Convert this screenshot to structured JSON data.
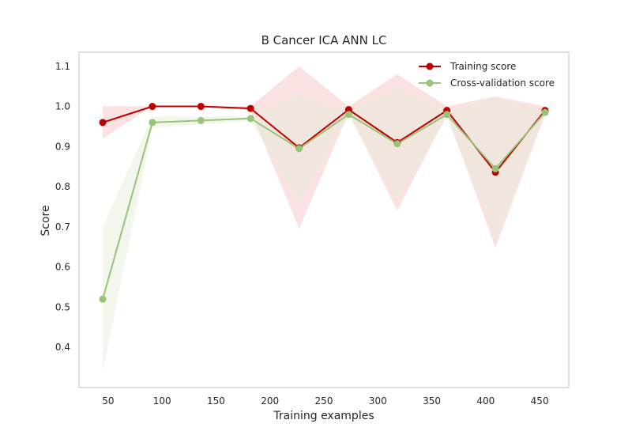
{
  "chart_data": {
    "type": "line",
    "title": "B Cancer ICA ANN LC",
    "xlabel": "Training examples",
    "ylabel": "Score",
    "xlim": [
      23,
      477
    ],
    "ylim": [
      0.3,
      1.135
    ],
    "xticks": [
      50,
      100,
      150,
      200,
      250,
      300,
      350,
      400,
      450
    ],
    "yticks": [
      0.4,
      0.5,
      0.6,
      0.7,
      0.8,
      0.9,
      1.0,
      1.1
    ],
    "grid": false,
    "legend_position": "top-right",
    "x": [
      45,
      91,
      136,
      182,
      227,
      273,
      318,
      364,
      409,
      455
    ],
    "series": [
      {
        "name": "Training score",
        "color": "#c00000",
        "band_color": "#f4b6b6",
        "values": [
          0.96,
          1.0,
          1.0,
          0.995,
          0.897,
          0.992,
          0.91,
          0.99,
          0.836,
          0.99
        ],
        "band_upper": [
          1.0,
          1.0,
          1.0,
          1.0,
          1.1,
          1.0,
          1.08,
          1.0,
          1.025,
          1.0
        ],
        "band_lower": [
          0.92,
          1.0,
          1.0,
          0.99,
          0.695,
          0.985,
          0.74,
          0.98,
          0.648,
          0.98
        ]
      },
      {
        "name": "Cross-validation score",
        "color": "#98c379",
        "band_color": "#e4ecd8",
        "values": [
          0.52,
          0.96,
          0.965,
          0.97,
          0.895,
          0.98,
          0.907,
          0.98,
          0.845,
          0.985
        ],
        "band_upper": [
          0.7,
          0.975,
          0.975,
          0.975,
          1.03,
          0.985,
          1.05,
          0.99,
          1.02,
          0.99
        ],
        "band_lower": [
          0.34,
          0.945,
          0.955,
          0.965,
          0.76,
          0.975,
          0.765,
          0.97,
          0.67,
          0.98
        ]
      }
    ]
  }
}
